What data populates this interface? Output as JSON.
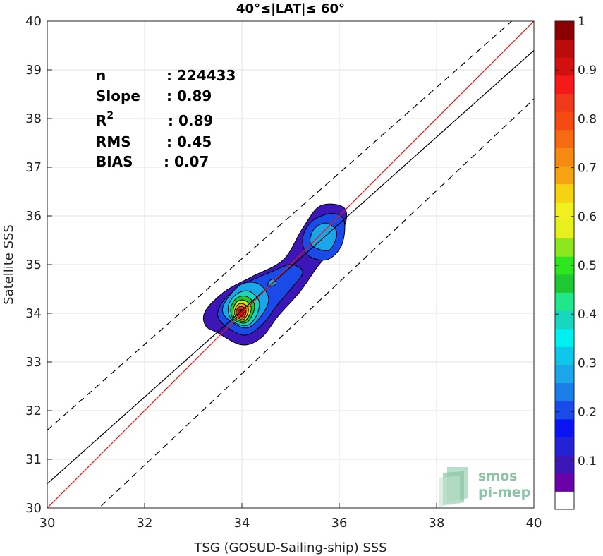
{
  "chart_data": {
    "type": "heatmap",
    "title": "40°≤|LAT|≤ 60°",
    "xlabel": "TSG (GOSUD-Sailing-ship) SSS",
    "ylabel": "Satellite SSS",
    "xlim": [
      30,
      40
    ],
    "ylim": [
      30,
      40
    ],
    "xticks": [
      "30",
      "32",
      "34",
      "36",
      "38",
      "40"
    ],
    "yticks": [
      "30",
      "31",
      "32",
      "33",
      "34",
      "35",
      "36",
      "37",
      "38",
      "39",
      "40"
    ],
    "grid": true,
    "stats": [
      {
        "label": "n",
        "value": ": 224433"
      },
      {
        "label": "Slope",
        "value": ": 0.89"
      },
      {
        "label": "R",
        "sup": "2",
        "value": ": 0.89"
      },
      {
        "label": "RMS",
        "value": ": 0.45"
      },
      {
        "label": "BIAS",
        "value": ": 0.07"
      }
    ],
    "lines": {
      "identity": {
        "x": [
          30,
          40
        ],
        "y": [
          30,
          40
        ],
        "color": "#e8161b",
        "style": "solid"
      },
      "regression": {
        "slope": 0.89,
        "x": [
          30,
          40
        ],
        "y": [
          30.5,
          39.4
        ],
        "color": "#000000",
        "style": "solid"
      },
      "upper_bound": {
        "x": [
          30,
          40
        ],
        "y": [
          31.6,
          40.4
        ],
        "color": "#000000",
        "style": "dashed"
      },
      "lower_bound": {
        "x": [
          30,
          40
        ],
        "y": [
          29.0,
          38.4
        ],
        "color": "#000000",
        "style": "dashed"
      }
    },
    "density_levels": [
      {
        "level": 0.05,
        "color": "#3d16b8",
        "points": [
          [
            33.5,
            33.6
          ],
          [
            34.0,
            33.35
          ],
          [
            34.4,
            33.5
          ],
          [
            34.75,
            33.95
          ],
          [
            35.2,
            34.45
          ],
          [
            35.55,
            34.95
          ],
          [
            35.95,
            35.45
          ],
          [
            36.15,
            35.95
          ],
          [
            36.05,
            36.2
          ],
          [
            35.6,
            36.2
          ],
          [
            35.25,
            35.75
          ],
          [
            34.85,
            35.1
          ],
          [
            34.2,
            34.75
          ],
          [
            33.65,
            34.45
          ],
          [
            33.25,
            34.05
          ],
          [
            33.25,
            33.75
          ]
        ]
      },
      {
        "level": 0.15,
        "color": "#1a4ae8",
        "points": [
          [
            33.65,
            33.75
          ],
          [
            34.05,
            33.55
          ],
          [
            34.4,
            33.75
          ],
          [
            34.75,
            34.2
          ],
          [
            35.05,
            34.55
          ],
          [
            35.25,
            34.85
          ],
          [
            35.0,
            35.0
          ],
          [
            34.6,
            34.85
          ],
          [
            34.15,
            34.65
          ],
          [
            33.7,
            34.35
          ],
          [
            33.5,
            34.0
          ]
        ]
      },
      {
        "level": 0.15,
        "color": "#1a4ae8",
        "points": [
          [
            35.35,
            35.2
          ],
          [
            35.75,
            35.1
          ],
          [
            36.05,
            35.4
          ],
          [
            36.1,
            35.9
          ],
          [
            35.85,
            36.05
          ],
          [
            35.45,
            35.9
          ],
          [
            35.25,
            35.55
          ]
        ]
      },
      {
        "level": 0.3,
        "color": "#1aa6e8",
        "points": [
          [
            33.75,
            33.85
          ],
          [
            34.1,
            33.7
          ],
          [
            34.4,
            33.95
          ],
          [
            34.55,
            34.3
          ],
          [
            34.35,
            34.6
          ],
          [
            34.0,
            34.6
          ],
          [
            33.7,
            34.3
          ],
          [
            33.6,
            34.05
          ]
        ]
      },
      {
        "level": 0.3,
        "color": "#1aa6e8",
        "points": [
          [
            35.5,
            35.35
          ],
          [
            35.8,
            35.3
          ],
          [
            35.95,
            35.65
          ],
          [
            35.75,
            35.85
          ],
          [
            35.5,
            35.75
          ],
          [
            35.4,
            35.5
          ]
        ]
      },
      {
        "level": 0.3,
        "color": "#1aa6e8",
        "points": [
          [
            34.55,
            34.55
          ],
          [
            34.7,
            34.6
          ],
          [
            34.65,
            34.7
          ],
          [
            34.55,
            34.65
          ]
        ]
      },
      {
        "level": 0.4,
        "color": "#18d6c0",
        "points": [
          [
            33.8,
            33.85
          ],
          [
            34.1,
            33.75
          ],
          [
            34.3,
            33.95
          ],
          [
            34.35,
            34.25
          ],
          [
            34.15,
            34.45
          ],
          [
            33.9,
            34.4
          ],
          [
            33.72,
            34.15
          ]
        ]
      },
      {
        "level": 0.5,
        "color": "#1ec832",
        "points": [
          [
            33.83,
            33.88
          ],
          [
            34.07,
            33.8
          ],
          [
            34.22,
            33.98
          ],
          [
            34.25,
            34.2
          ],
          [
            34.08,
            34.35
          ],
          [
            33.88,
            34.3
          ],
          [
            33.77,
            34.1
          ]
        ]
      },
      {
        "level": 0.6,
        "color": "#c8e61e",
        "points": [
          [
            33.86,
            33.9
          ],
          [
            34.05,
            33.84
          ],
          [
            34.17,
            34.0
          ],
          [
            34.18,
            34.16
          ],
          [
            34.04,
            34.27
          ],
          [
            33.89,
            34.23
          ],
          [
            33.82,
            34.06
          ]
        ]
      },
      {
        "level": 0.7,
        "color": "#f5a312",
        "points": [
          [
            33.88,
            33.93
          ],
          [
            34.03,
            33.87
          ],
          [
            34.12,
            34.0
          ],
          [
            34.12,
            34.13
          ],
          [
            34.0,
            34.2
          ],
          [
            33.9,
            34.16
          ],
          [
            33.85,
            34.04
          ]
        ]
      },
      {
        "level": 0.85,
        "color": "#ee3a1a",
        "points": [
          [
            33.9,
            33.95
          ],
          [
            34.02,
            33.9
          ],
          [
            34.08,
            34.0
          ],
          [
            34.07,
            34.1
          ],
          [
            33.98,
            34.14
          ],
          [
            33.91,
            34.1
          ],
          [
            33.88,
            34.02
          ]
        ]
      },
      {
        "level": 1.0,
        "color": "#bb0c0c",
        "points": [
          [
            33.93,
            33.97
          ],
          [
            34.0,
            33.94
          ],
          [
            34.04,
            34.01
          ],
          [
            34.02,
            34.07
          ],
          [
            33.96,
            34.08
          ],
          [
            33.92,
            34.04
          ]
        ]
      }
    ],
    "colorbar": {
      "ticks": [
        "0.1",
        "0.2",
        "0.3",
        "0.4",
        "0.5",
        "0.6",
        "0.7",
        "0.8",
        "0.9",
        "1"
      ],
      "colors": [
        "#ffffff",
        "#6a00a8",
        "#3d16b8",
        "#2323d6",
        "#0a14f0",
        "#1a4ae8",
        "#1a7de8",
        "#1aa6e8",
        "#10c6ea",
        "#00f0f0",
        "#18d6c0",
        "#22e68a",
        "#1ec832",
        "#2ee61e",
        "#8ee61e",
        "#e6f01e",
        "#f0f01e",
        "#f5d212",
        "#f5a312",
        "#f58a12",
        "#f56a12",
        "#f54a12",
        "#ee3a1a",
        "#f51a1a",
        "#d21010",
        "#bb0c0c",
        "#8a0000"
      ]
    }
  },
  "logo": {
    "line1": "smos",
    "line2": "pi-mep"
  }
}
